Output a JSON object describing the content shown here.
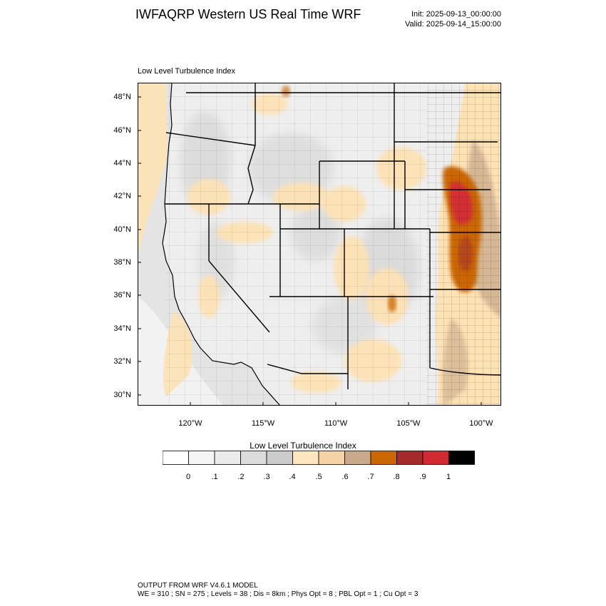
{
  "header": {
    "title": "IWFAQRP Western US Real Time WRF",
    "init": "Init: 2025-09-13_00:00:00",
    "valid": "Valid: 2025-09-14_15:00:00"
  },
  "map": {
    "label": "Low Level Turbulence Index",
    "lat_ticks": [
      "48°N",
      "46°N",
      "44°N",
      "42°N",
      "40°N",
      "38°N",
      "36°N",
      "34°N",
      "32°N",
      "30°N"
    ],
    "lon_ticks": [
      "120°W",
      "115°W",
      "110°W",
      "105°W",
      "100°W"
    ],
    "colors": {
      "ocean": "#e4e4e4",
      "land_base": "#eeeeee",
      "pale_orange": "#fde2b4",
      "orange": "#d2691e",
      "brown": "#c8a98a",
      "red": "#d32f35",
      "dark_red": "#a63232",
      "borders": "#000000"
    }
  },
  "colorbar": {
    "title": "Low Level Turbulence Index",
    "labels": [
      "0",
      ".1",
      ".2",
      ".3",
      ".4",
      ".5",
      ".6",
      ".7",
      ".8",
      ".9",
      "1"
    ],
    "colors": [
      "#ffffff",
      "#f5f5f5",
      "#ebebeb",
      "#dcdcdc",
      "#cccccc",
      "#fde6bd",
      "#f5d3a6",
      "#c8a98a",
      "#cc6600",
      "#a52a2a",
      "#d22a33",
      "#000000"
    ]
  },
  "footer": {
    "line1": "OUTPUT FROM WRF V4.6.1 MODEL",
    "line2": "WE = 310 ; SN = 275 ; Levels = 38 ; Dis = 8km ; Phys Opt = 8 ; PBL Opt = 1 ; Cu Opt = 3"
  }
}
